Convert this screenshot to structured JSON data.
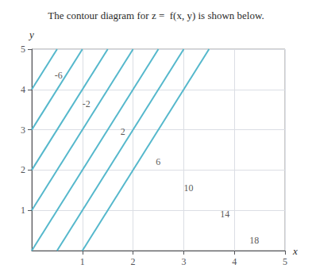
{
  "chart_data": {
    "type": "line",
    "title": "The contour diagram for z =  f(x, y) is shown below.",
    "xlabel": "x",
    "ylabel": "y",
    "xlim": [
      0,
      5
    ],
    "ylim": [
      0,
      5
    ],
    "xticks": [
      1,
      2,
      3,
      4,
      5
    ],
    "yticks": [
      1,
      2,
      3,
      4,
      5
    ],
    "grid": true,
    "color": "#55b8cc",
    "series": [
      {
        "x": [
          0,
          0.5
        ],
        "values": [
          4,
          5
        ]
      },
      {
        "x": [
          0,
          1
        ],
        "values": [
          3,
          5
        ]
      },
      {
        "x": [
          0,
          1.5
        ],
        "values": [
          2,
          5
        ]
      },
      {
        "x": [
          0,
          2
        ],
        "values": [
          1,
          5
        ]
      },
      {
        "x": [
          0,
          2.5
        ],
        "values": [
          0,
          5
        ]
      },
      {
        "x": [
          0.5,
          3
        ],
        "values": [
          0,
          5
        ]
      },
      {
        "x": [
          1,
          3.5
        ],
        "values": [
          0,
          5
        ]
      }
    ],
    "annotations": [
      {
        "text": "-6",
        "x": 0.45,
        "y": 4.35
      },
      {
        "text": "-2",
        "x": 1.0,
        "y": 3.65
      },
      {
        "text": "2",
        "x": 1.75,
        "y": 2.95
      },
      {
        "text": "6",
        "x": 2.45,
        "y": 2.2
      },
      {
        "text": "10",
        "x": 3.0,
        "y": 1.55
      },
      {
        "text": "14",
        "x": 3.72,
        "y": 0.9
      },
      {
        "text": "18",
        "x": 4.3,
        "y": 0.25
      }
    ]
  }
}
